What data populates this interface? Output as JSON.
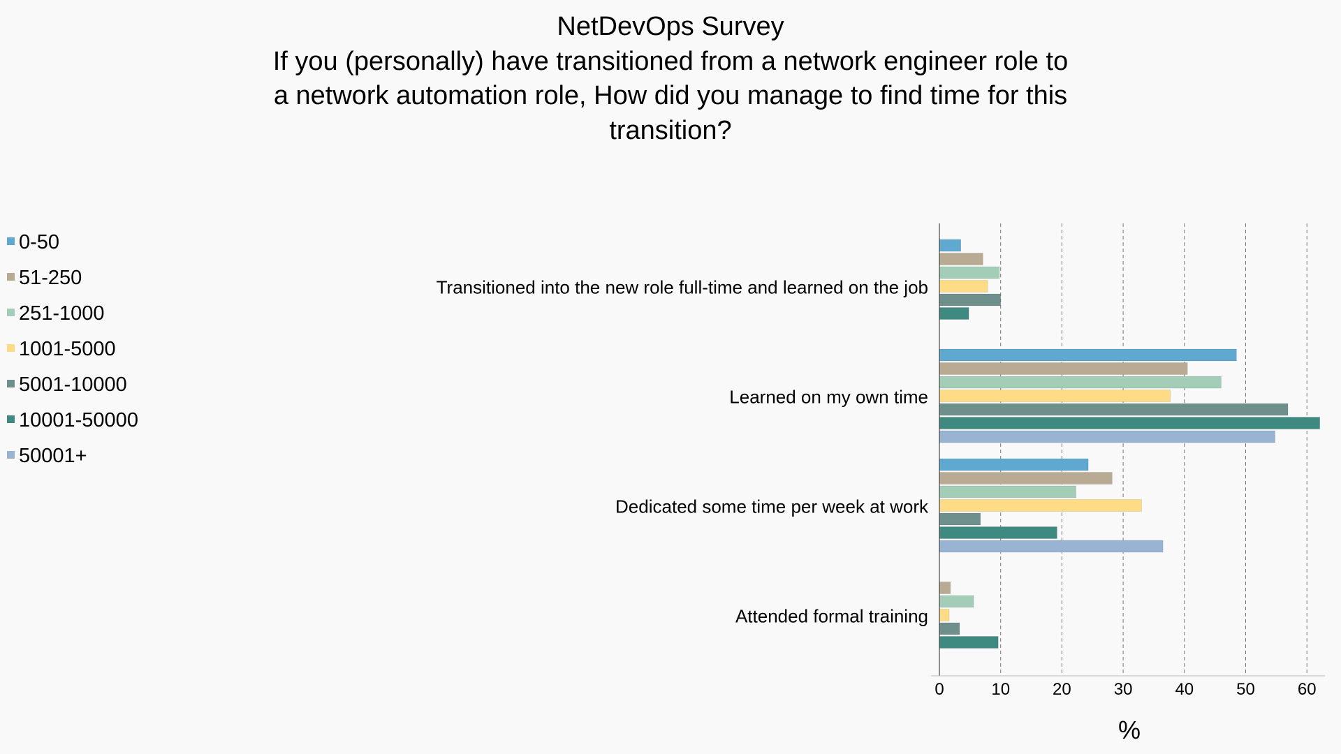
{
  "chart_data": {
    "type": "bar",
    "orientation": "horizontal",
    "title": "NetDevOps Survey",
    "subtitle_lines": [
      "If you (personally) have transitioned from a network engineer role to",
      "a network automation role, How did you manage to find time for this",
      "transition?"
    ],
    "xlabel": "%",
    "ylabel": "",
    "xlim": [
      0,
      63
    ],
    "xticks": [
      0,
      10,
      20,
      30,
      40,
      50,
      60
    ],
    "grid": "vertical-dashed",
    "legend_position": "left",
    "categories": [
      "Transitioned into the new role full-time and learned on the job",
      "Learned on my own time",
      "Dedicated some time per week at work",
      "Attended formal training"
    ],
    "series": [
      {
        "name": "0-50",
        "color": "#5fa8d0",
        "values": [
          3.5,
          48.5,
          24.3,
          0
        ]
      },
      {
        "name": "51-250",
        "color": "#b9ab93",
        "values": [
          7.1,
          40.5,
          28.2,
          1.8
        ]
      },
      {
        "name": "251-1000",
        "color": "#a3cdb6",
        "values": [
          9.8,
          46.0,
          22.3,
          5.6
        ]
      },
      {
        "name": "1001-5000",
        "color": "#fedc85",
        "values": [
          7.9,
          37.7,
          33.0,
          1.6
        ]
      },
      {
        "name": "5001-10000",
        "color": "#6f8f8c",
        "values": [
          10.0,
          56.9,
          6.7,
          3.3
        ]
      },
      {
        "name": "10001-50000",
        "color": "#3f8a80",
        "values": [
          4.8,
          62.1,
          19.2,
          9.6
        ]
      },
      {
        "name": "50001+",
        "color": "#98b4d2",
        "values": [
          0,
          54.8,
          36.5,
          0
        ]
      }
    ]
  }
}
